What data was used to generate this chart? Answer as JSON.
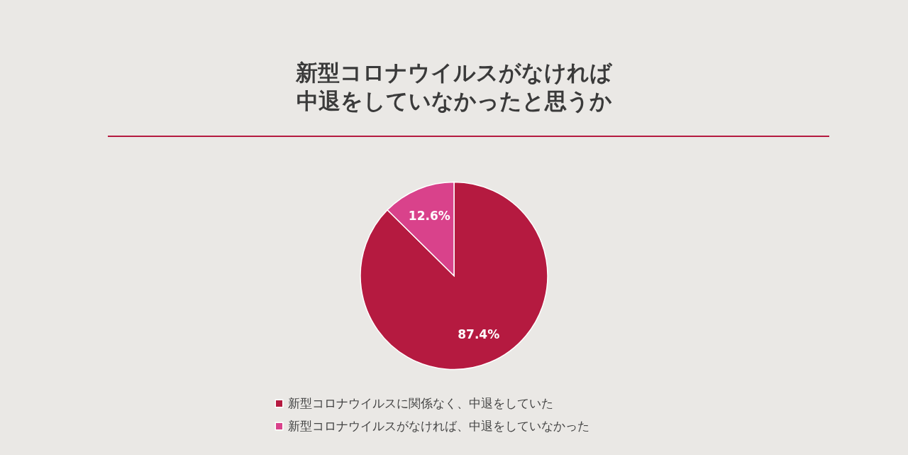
{
  "chart_data": {
    "type": "pie",
    "title": "新型コロナウイルスがなければ中退をしていなかったと思うか",
    "categories": [
      "新型コロナウイルスに関係なく、中退をしていた",
      "新型コロナウイルスがなければ、中退をしていなかった"
    ],
    "values": [
      87.4,
      12.6
    ],
    "value_labels": [
      "87.4%",
      "12.6%"
    ],
    "colors": [
      "#b51a40",
      "#d9428b"
    ],
    "legend": "bottom"
  }
}
